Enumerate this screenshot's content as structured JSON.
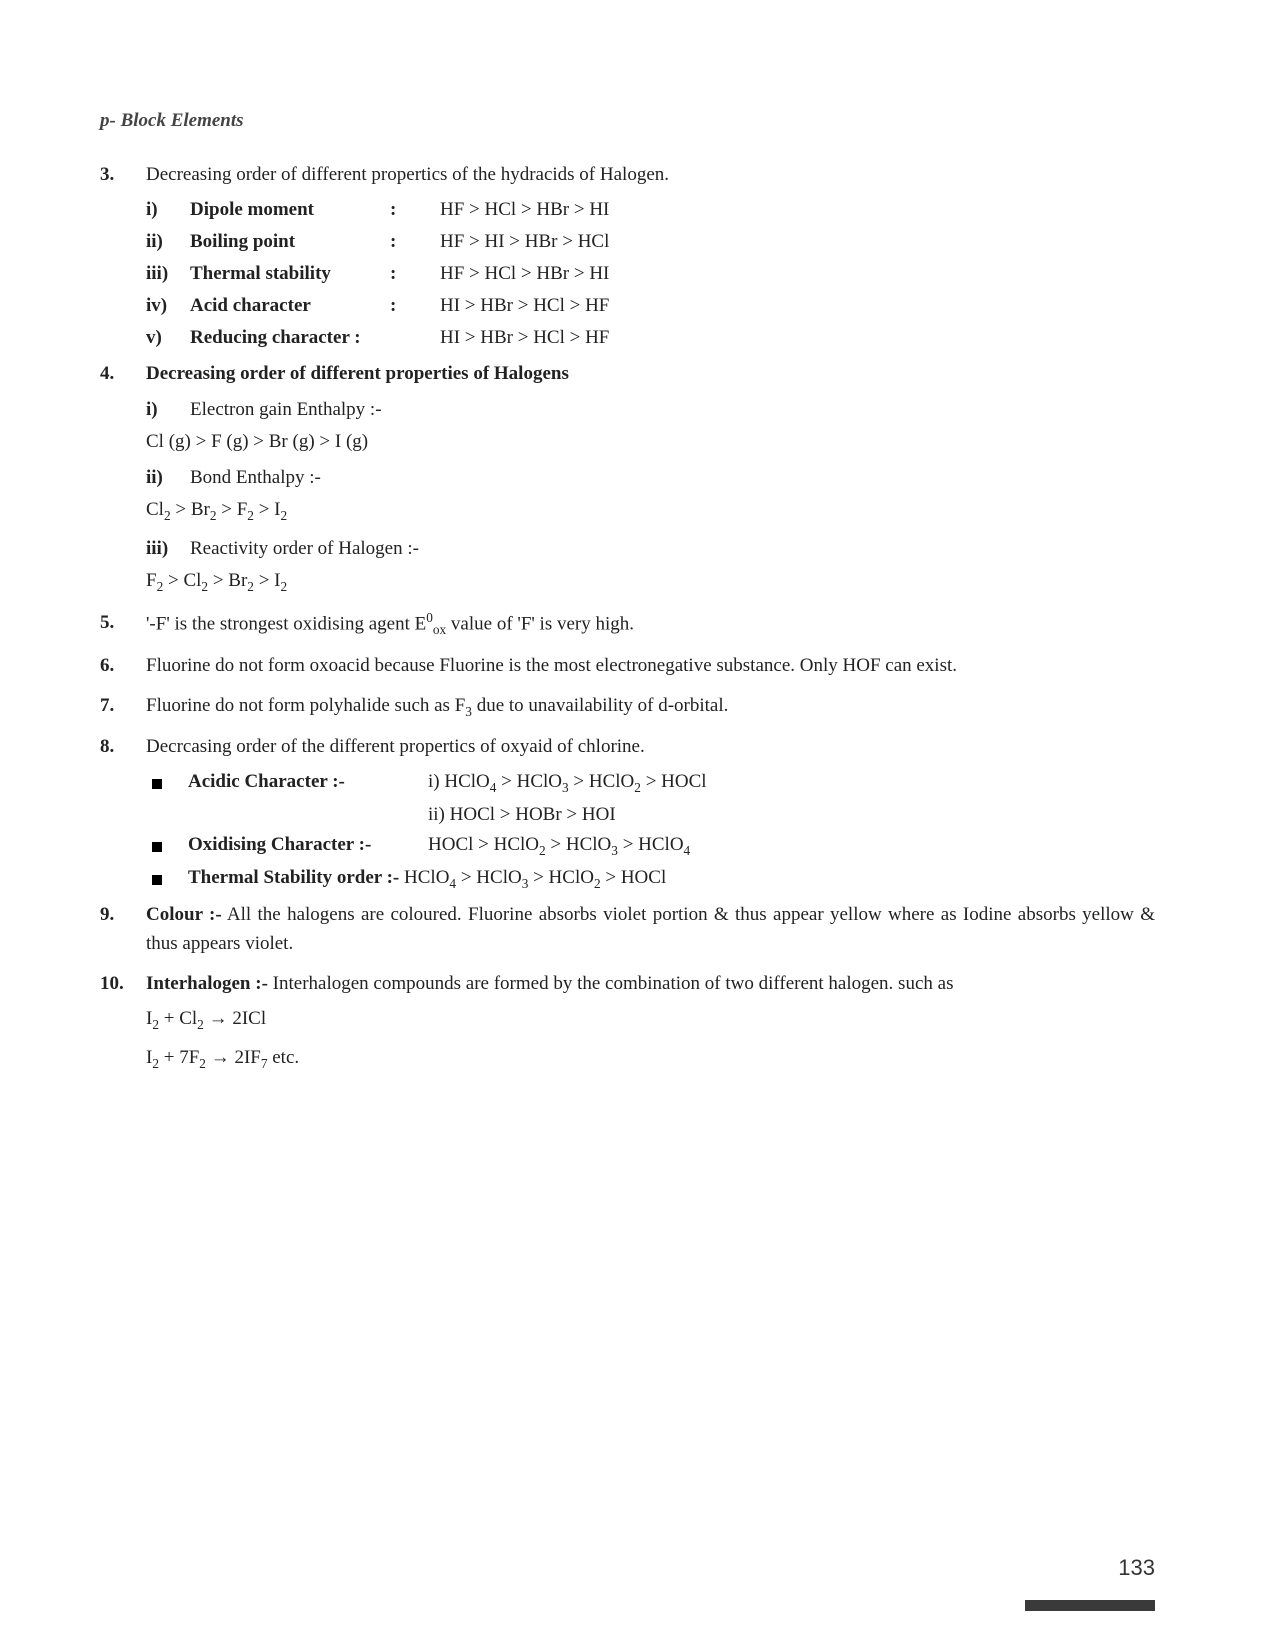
{
  "header": "p- Block Elements",
  "q3": {
    "num": "3.",
    "text": "Decreasing order of different propertics of the hydracids of Halogen.",
    "rows": [
      {
        "n": "i)",
        "label": "Dipole moment",
        "val": "HF > HCl > HBr > HI"
      },
      {
        "n": "ii)",
        "label": "Boiling point",
        "val": "HF > HI > HBr > HCl"
      },
      {
        "n": "iii)",
        "label": "Thermal stability",
        "val": "HF > HCl > HBr > HI"
      },
      {
        "n": "iv)",
        "label": "Acid character",
        "val": "HI > HBr > HCl > HF"
      },
      {
        "n": "v)",
        "label": "Reducing character :",
        "val": "HI > HBr > HCl > HF",
        "nocolon": true
      }
    ]
  },
  "q4": {
    "num": "4.",
    "text": "Decreasing order of different properties of Halogens",
    "items": [
      {
        "n": "i)",
        "label": "Electron gain Enthalpy :-",
        "formula": "Cl (g) > F (g) > Br (g) > I (g)",
        "plain": true
      },
      {
        "n": "ii)",
        "label": "Bond Enthalpy :-",
        "formula": "Cl|2| > Br|2| > F|2| > I|2|"
      },
      {
        "n": "iii)",
        "label": "Reactivity order of Halogen :-",
        "formula": "F|2| > Cl|2| > Br|2| > I|2|"
      }
    ]
  },
  "q5": {
    "num": "5.",
    "pre": "'-F' is the strongest oxidising agent E",
    "supersub": "0|ox",
    "post": " value of 'F' is very high."
  },
  "q6": {
    "num": "6.",
    "text": "Fluorine do not form oxoacid because Fluorine is the most electronegative substance. Only HOF can exist."
  },
  "q7": {
    "num": "7.",
    "pre": "Fluorine do not form polyhalide such as F",
    "sub": "3",
    "post": " due to unavailability of d-orbital."
  },
  "q8": {
    "num": "8.",
    "text": "Decrcasing order of the different propertics of oxyaid of chlorine.",
    "bullets": [
      {
        "label": "Acidic Character :-",
        "val": "i) HClO|4| > HClO|3| > HClO|2| > HOCl",
        "extra": "ii) HOCl > HOBr > HOI"
      },
      {
        "label": "Oxidising Character :-",
        "val": "HOCl > HClO|2| > HClO|3| > HClO|4|"
      },
      {
        "label": "Thermal Stability order :- ",
        "val": "HClO|4| > HClO|3| > HClO|2| > HOCl",
        "inline": true
      }
    ]
  },
  "q9": {
    "num": "9.",
    "label": "Colour :-",
    "text": " All the halogens are coloured. Fluorine absorbs violet portion & thus appear yellow where as Iodine absorbs yellow & thus appears violet."
  },
  "q10": {
    "num": "10.",
    "label": "Interhalogen :-",
    "text": " Interhalogen compounds are formed by the combination of two different halogen. such as",
    "eq1": "I|2| + Cl|2| → 2ICl",
    "eq2": "I|2| + 7F|2| → 2IF|7| etc."
  },
  "pagenum": "133"
}
